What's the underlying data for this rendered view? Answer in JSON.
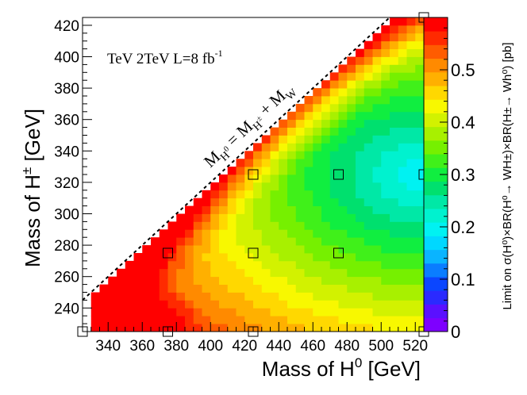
{
  "chart_data": {
    "type": "heatmap",
    "xlabel_main": "Mass of H",
    "xlabel_sup": "0",
    "xlabel_unit": " [GeV]",
    "ylabel_main": "Mass of H",
    "ylabel_sup": "±",
    "ylabel_unit": " [GeV]",
    "zlabel": "Limit on σ(H⁰)×BR(H⁰→ WH±)×BR(H±→ Wh⁰) [pb]",
    "xlim": [
      325,
      525
    ],
    "ylim": [
      225,
      425
    ],
    "zlim": [
      0,
      0.6
    ],
    "x_ticks": [
      340,
      360,
      380,
      400,
      420,
      440,
      460,
      480,
      500,
      520
    ],
    "y_ticks": [
      240,
      260,
      280,
      300,
      320,
      340,
      360,
      380,
      400,
      420
    ],
    "z_ticks": [
      0,
      0.1,
      0.2,
      0.3,
      0.4,
      0.5
    ],
    "z_tick_labels": [
      "0",
      "0.1",
      "0.2",
      "0.3",
      "0.4",
      "0.5"
    ],
    "x_cell_start": 330,
    "y_cell_start": 225,
    "cell_size": 5,
    "kinematic_line": "M(H0) = M(H±) + M(W)",
    "kinematic_label": {
      "m1": "M",
      "m1_sub": "H",
      "m1_subsup": "0",
      "eq": " = M",
      "m2_sub": "H",
      "m2_subsup": "±",
      "plus": " + M",
      "m3_sub": "W"
    },
    "lumi_label": {
      "text": "TeV 2TeV L=8 fb",
      "sup": "-1"
    },
    "sample_points": [
      [
        325,
        225
      ],
      [
        375,
        225
      ],
      [
        425,
        225
      ],
      [
        525,
        225
      ],
      [
        375,
        275
      ],
      [
        425,
        275
      ],
      [
        475,
        275
      ],
      [
        425,
        325
      ],
      [
        475,
        325
      ],
      [
        525,
        325
      ],
      [
        525,
        425
      ]
    ],
    "colors": {
      "palette": [
        "#7e00ff",
        "#5a10ff",
        "#2a2aff",
        "#0b46ff",
        "#0a7dff",
        "#0ab4ff",
        "#00d8ff",
        "#00f2f2",
        "#00f2cf",
        "#00e8a6",
        "#00e06e",
        "#10ee40",
        "#40f01a",
        "#76f000",
        "#a8f000",
        "#d2f200",
        "#f8f800",
        "#ffd800",
        "#ffb000",
        "#ff8a00",
        "#ff5c00",
        "#ff2a00",
        "#ff0000"
      ],
      "frame": "#000000"
    }
  }
}
